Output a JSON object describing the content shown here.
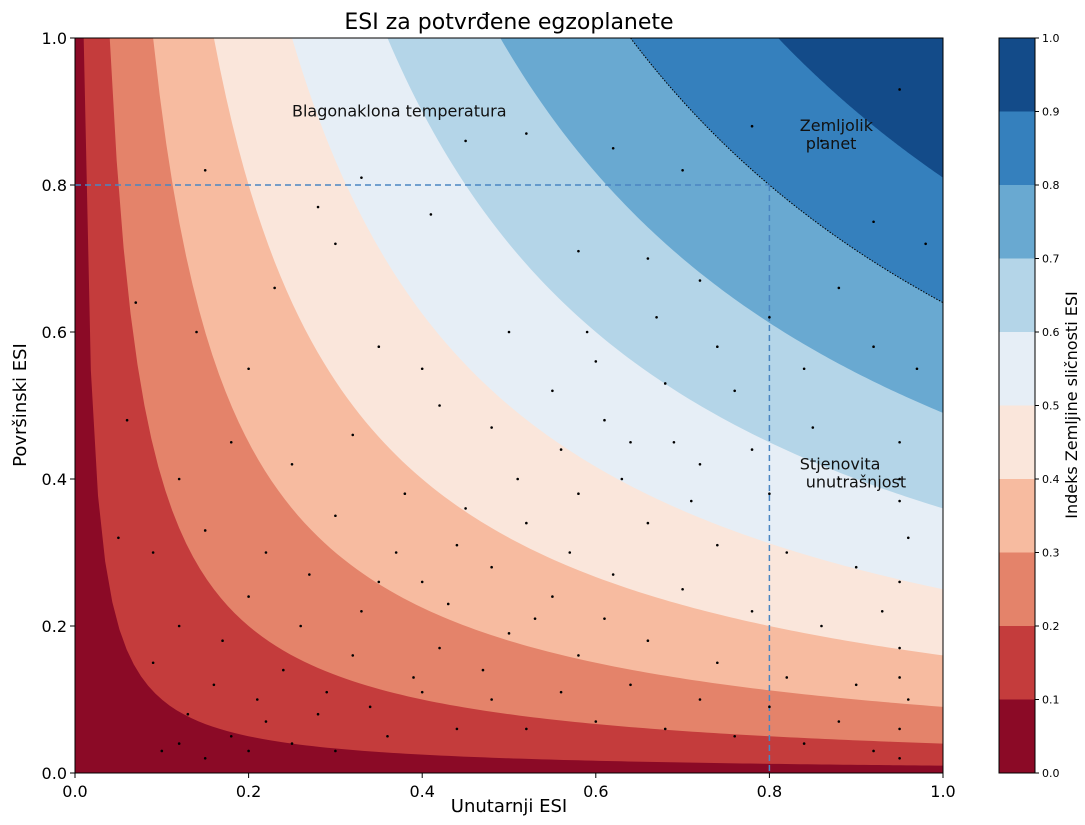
{
  "chart_data": {
    "type": "contour",
    "title": "ESI za potvrđene egzoplanete",
    "xlabel": "Unutarnji ESI",
    "ylabel": "Površinski ESI",
    "xlim": [
      0.0,
      1.0
    ],
    "ylim": [
      0.0,
      1.0
    ],
    "x_ticks": [
      "0.0",
      "0.2",
      "0.4",
      "0.6",
      "0.8",
      "1.0"
    ],
    "y_ticks": [
      "0.0",
      "0.2",
      "0.4",
      "0.6",
      "0.8",
      "1.0"
    ],
    "colorbar": {
      "label": "Indeks Zemljine sličnosti ESI",
      "levels": [
        0.0,
        0.1,
        0.2,
        0.3,
        0.4,
        0.5,
        0.6,
        0.7,
        0.8,
        0.9,
        1.0
      ],
      "tick_labels": [
        "0.0",
        "0.1",
        "0.2",
        "0.3",
        "0.4",
        "0.5",
        "0.6",
        "0.7",
        "0.8",
        "0.9",
        "1.0"
      ],
      "colors": [
        "#67001f",
        "#b2182b",
        "#d6604d",
        "#f4a582",
        "#fddbc7",
        "#f7f7f7",
        "#d1e5f0",
        "#92c5de",
        "#4393c3",
        "#2166ac",
        "#053061"
      ],
      "band_colors": [
        "#8b0a26",
        "#c43c3c",
        "#e4836a",
        "#f7bba0",
        "#fae6db",
        "#e6eef6",
        "#b4d5e8",
        "#69a9d1",
        "#3580bd",
        "#134b89"
      ]
    },
    "surface": "ESI = sqrt(interior_esi * surface_esi)",
    "reference_lines": [
      {
        "orientation": "horizontal",
        "value": 0.8,
        "style": "dashed",
        "color": "#4a86c2"
      },
      {
        "orientation": "vertical",
        "value": 0.8,
        "style": "dashed",
        "color": "#4a86c2"
      }
    ],
    "highlight_contour": {
      "level": 0.8,
      "style": "dotted",
      "color": "#000000"
    },
    "annotations": [
      {
        "text": "Blagonaklona temperatura",
        "x": 0.25,
        "y": 0.9
      },
      {
        "text": "Zemljolik planet",
        "x": 0.835,
        "y": 0.88
      },
      {
        "text": "Stjenovita unutrašnjost",
        "x": 0.835,
        "y": 0.42
      }
    ],
    "points": [
      [
        0.15,
        0.82
      ],
      [
        0.33,
        0.81
      ],
      [
        0.45,
        0.86
      ],
      [
        0.52,
        0.87
      ],
      [
        0.62,
        0.85
      ],
      [
        0.7,
        0.82
      ],
      [
        0.78,
        0.88
      ],
      [
        0.86,
        0.86
      ],
      [
        0.95,
        0.93
      ],
      [
        0.92,
        0.75
      ],
      [
        0.98,
        0.72
      ],
      [
        0.88,
        0.66
      ],
      [
        0.8,
        0.62
      ],
      [
        0.72,
        0.67
      ],
      [
        0.66,
        0.7
      ],
      [
        0.58,
        0.71
      ],
      [
        0.41,
        0.76
      ],
      [
        0.28,
        0.77
      ],
      [
        0.3,
        0.72
      ],
      [
        0.23,
        0.66
      ],
      [
        0.14,
        0.6
      ],
      [
        0.07,
        0.64
      ],
      [
        0.06,
        0.48
      ],
      [
        0.2,
        0.55
      ],
      [
        0.35,
        0.58
      ],
      [
        0.4,
        0.55
      ],
      [
        0.5,
        0.6
      ],
      [
        0.6,
        0.56
      ],
      [
        0.68,
        0.53
      ],
      [
        0.76,
        0.52
      ],
      [
        0.84,
        0.55
      ],
      [
        0.92,
        0.58
      ],
      [
        0.97,
        0.55
      ],
      [
        0.95,
        0.45
      ],
      [
        0.88,
        0.4
      ],
      [
        0.8,
        0.38
      ],
      [
        0.72,
        0.42
      ],
      [
        0.64,
        0.45
      ],
      [
        0.56,
        0.44
      ],
      [
        0.48,
        0.47
      ],
      [
        0.42,
        0.5
      ],
      [
        0.32,
        0.46
      ],
      [
        0.25,
        0.42
      ],
      [
        0.18,
        0.45
      ],
      [
        0.12,
        0.4
      ],
      [
        0.09,
        0.3
      ],
      [
        0.05,
        0.32
      ],
      [
        0.15,
        0.33
      ],
      [
        0.22,
        0.3
      ],
      [
        0.3,
        0.35
      ],
      [
        0.38,
        0.38
      ],
      [
        0.45,
        0.36
      ],
      [
        0.52,
        0.34
      ],
      [
        0.58,
        0.38
      ],
      [
        0.66,
        0.34
      ],
      [
        0.74,
        0.31
      ],
      [
        0.82,
        0.3
      ],
      [
        0.9,
        0.28
      ],
      [
        0.96,
        0.32
      ],
      [
        0.93,
        0.22
      ],
      [
        0.86,
        0.2
      ],
      [
        0.78,
        0.22
      ],
      [
        0.7,
        0.25
      ],
      [
        0.62,
        0.27
      ],
      [
        0.55,
        0.24
      ],
      [
        0.48,
        0.28
      ],
      [
        0.4,
        0.26
      ],
      [
        0.33,
        0.22
      ],
      [
        0.26,
        0.2
      ],
      [
        0.2,
        0.24
      ],
      [
        0.12,
        0.2
      ],
      [
        0.09,
        0.15
      ],
      [
        0.16,
        0.12
      ],
      [
        0.24,
        0.14
      ],
      [
        0.32,
        0.16
      ],
      [
        0.42,
        0.17
      ],
      [
        0.5,
        0.19
      ],
      [
        0.58,
        0.16
      ],
      [
        0.66,
        0.18
      ],
      [
        0.74,
        0.15
      ],
      [
        0.82,
        0.13
      ],
      [
        0.9,
        0.12
      ],
      [
        0.95,
        0.17
      ],
      [
        0.96,
        0.1
      ],
      [
        0.95,
        0.06
      ],
      [
        0.88,
        0.07
      ],
      [
        0.8,
        0.09
      ],
      [
        0.72,
        0.1
      ],
      [
        0.64,
        0.12
      ],
      [
        0.56,
        0.11
      ],
      [
        0.48,
        0.1
      ],
      [
        0.4,
        0.11
      ],
      [
        0.34,
        0.09
      ],
      [
        0.28,
        0.08
      ],
      [
        0.22,
        0.07
      ],
      [
        0.18,
        0.05
      ],
      [
        0.12,
        0.04
      ],
      [
        0.1,
        0.03
      ],
      [
        0.15,
        0.02
      ],
      [
        0.2,
        0.03
      ],
      [
        0.25,
        0.04
      ],
      [
        0.3,
        0.03
      ],
      [
        0.36,
        0.05
      ],
      [
        0.44,
        0.06
      ],
      [
        0.52,
        0.06
      ],
      [
        0.6,
        0.07
      ],
      [
        0.68,
        0.06
      ],
      [
        0.76,
        0.05
      ],
      [
        0.84,
        0.04
      ],
      [
        0.92,
        0.03
      ],
      [
        0.95,
        0.02
      ],
      [
        0.95,
        0.13
      ],
      [
        0.95,
        0.26
      ],
      [
        0.95,
        0.37
      ],
      [
        0.95,
        0.4
      ],
      [
        0.71,
        0.37
      ],
      [
        0.63,
        0.4
      ],
      [
        0.57,
        0.3
      ],
      [
        0.51,
        0.4
      ],
      [
        0.44,
        0.31
      ],
      [
        0.37,
        0.3
      ],
      [
        0.67,
        0.62
      ],
      [
        0.74,
        0.58
      ],
      [
        0.55,
        0.52
      ],
      [
        0.61,
        0.48
      ],
      [
        0.78,
        0.44
      ],
      [
        0.85,
        0.47
      ],
      [
        0.69,
        0.45
      ],
      [
        0.53,
        0.21
      ],
      [
        0.61,
        0.21
      ],
      [
        0.47,
        0.14
      ],
      [
        0.39,
        0.13
      ],
      [
        0.29,
        0.11
      ],
      [
        0.21,
        0.1
      ],
      [
        0.13,
        0.08
      ],
      [
        0.17,
        0.18
      ],
      [
        0.27,
        0.27
      ],
      [
        0.35,
        0.26
      ],
      [
        0.43,
        0.23
      ],
      [
        0.59,
        0.6
      ]
    ]
  }
}
